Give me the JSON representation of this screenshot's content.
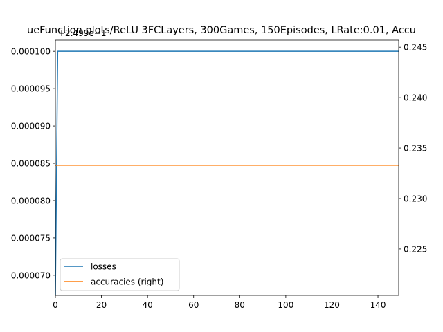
{
  "chart_data": {
    "type": "line",
    "title": "ueFunction plots/ReLU 3FCLayers, 300Games, 150Episodes, LRate:0.01, Accu",
    "xlabel": "",
    "ylabel": "",
    "xlim": [
      0,
      149
    ],
    "x_ticks": [
      "0",
      "20",
      "40",
      "60",
      "80",
      "100",
      "120",
      "140"
    ],
    "left_axis": {
      "offset_label": "+2.499e−1",
      "ylim": [
        6.73e-05,
        0.0001015
      ],
      "ticks": [
        "0.000070",
        "0.000075",
        "0.000080",
        "0.000085",
        "0.000090",
        "0.000095",
        "0.000100"
      ]
    },
    "right_axis": {
      "ylim": [
        0.2204,
        0.2457
      ],
      "ticks": [
        "0.225",
        "0.230",
        "0.235",
        "0.240",
        "0.245"
      ]
    },
    "series": [
      {
        "name": "losses",
        "axis": "left",
        "color": "#1f77b4",
        "points": [
          [
            0,
            6.73e-05
          ],
          [
            1,
            0.0001
          ],
          [
            149,
            0.0001
          ]
        ]
      },
      {
        "name": "accuracies (right)",
        "axis": "right",
        "color": "#ff7f0e",
        "points": [
          [
            0,
            0.2333
          ],
          [
            149,
            0.2333
          ]
        ]
      }
    ],
    "legend": {
      "position": "lower-left"
    },
    "grid": false
  }
}
